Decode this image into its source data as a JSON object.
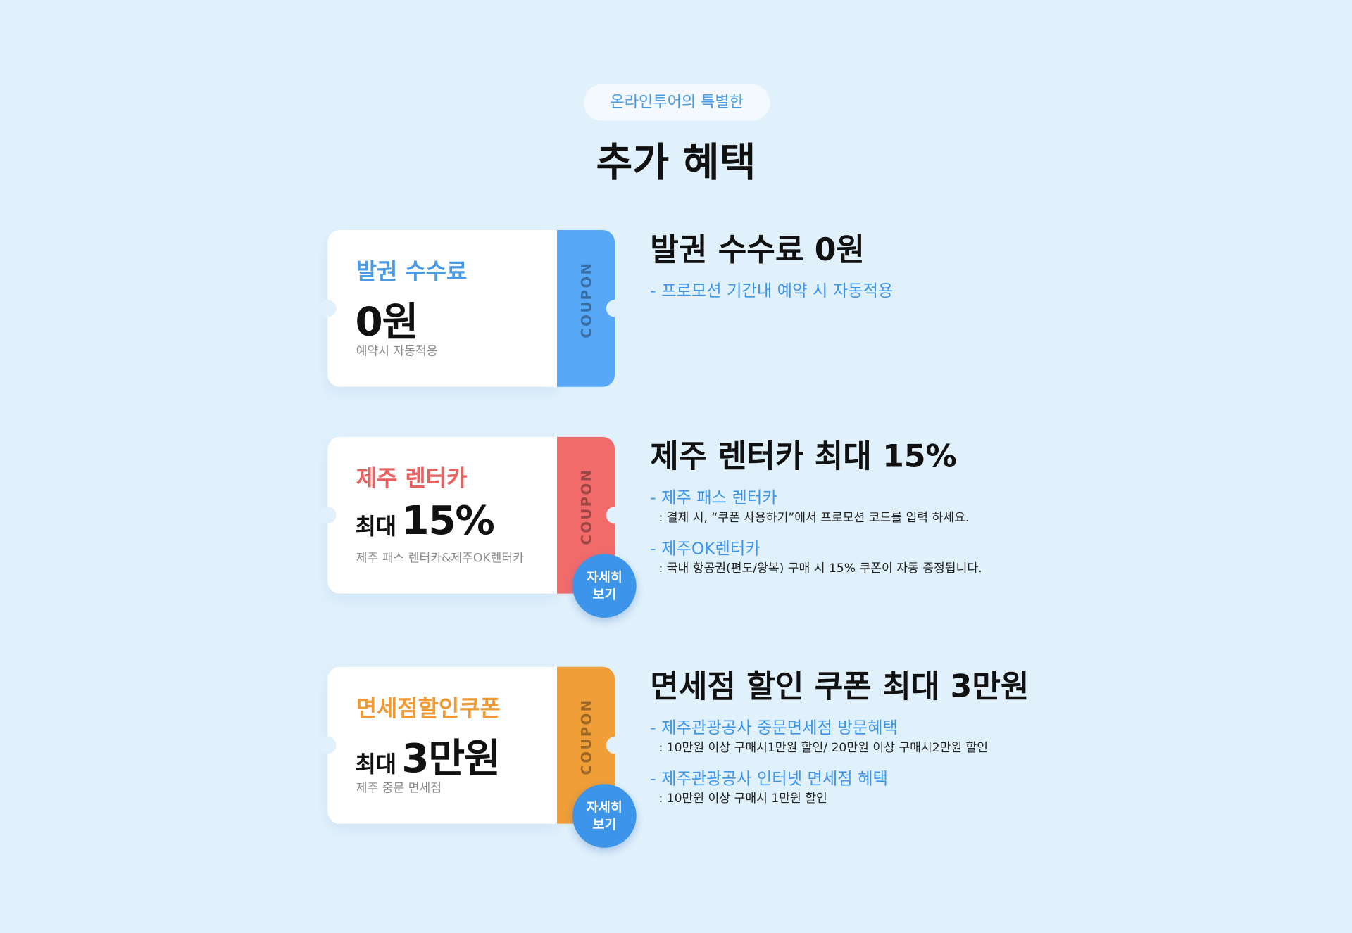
{
  "header": {
    "pill": "온라인투어의 특별한",
    "title": "추가 혜택"
  },
  "coupons": [
    {
      "label": "발권 수수료",
      "value_prefix": null,
      "value": "0원",
      "note": "예약시 자동적용",
      "stub": "COUPON",
      "color": "#57a8f7",
      "label_color": "#4a9be6",
      "heading": "발권 수수료 0원",
      "details": [
        {
          "title": "- 프로모션 기간내 예약 시 자동적용",
          "desc": null
        }
      ],
      "button": null
    },
    {
      "label": "제주 렌터카",
      "value_prefix": "최대",
      "value": "15%",
      "note": "제주 패스 렌터카&제주OK렌터카",
      "stub": "COUPON",
      "color": "#f26b6b",
      "label_color": "#e96060",
      "heading": "제주 렌터카 최대 15%",
      "details": [
        {
          "title": "- 제주 패스 렌터카",
          "desc": ": 결제 시, “쿠폰 사용하기”에서 프로모션 코드를 입력 하세요."
        },
        {
          "title": "- 제주OK렌터카",
          "desc": ": 국내 항공권(편도/왕복) 구매 시 15% 쿠폰이 자동 증정됩니다."
        }
      ],
      "button": "자세히 보기"
    },
    {
      "label": "면세점할인쿠폰",
      "value_prefix": "최대",
      "value": "3만원",
      "note": "제주 중문 면세점",
      "stub": "COUPON",
      "color": "#f09e38",
      "label_color": "#ef9a34",
      "heading": "면세점 할인 쿠폰 최대 3만원",
      "details": [
        {
          "title": "- 제주관광공사 중문면세점 방문혜택",
          "desc": ": 10만원 이상 구매시1만원 할인/ 20만원 이상 구매시2만원 할인"
        },
        {
          "title": "- 제주관광공사 인터넷 면세점 혜택",
          "desc": ": 10만원 이상 구매시 1만원 할인"
        }
      ],
      "button": "자세히 보기"
    }
  ]
}
